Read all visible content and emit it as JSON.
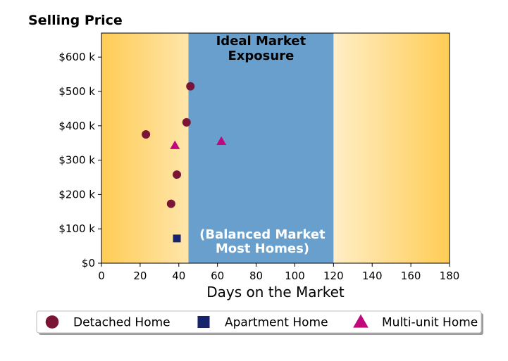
{
  "chart_data": {
    "type": "scatter",
    "title": "Selling Price",
    "xlabel": "Days on the Market",
    "ylabel": "",
    "xlim": [
      0,
      180
    ],
    "ylim": [
      0,
      670000
    ],
    "x_ticks": [
      0,
      20,
      40,
      60,
      80,
      100,
      120,
      140,
      160,
      180
    ],
    "x_tick_labels": [
      "0",
      "20",
      "40",
      "60",
      "80",
      "100",
      "120",
      "140",
      "160",
      "180"
    ],
    "y_ticks": [
      0,
      100000,
      200000,
      300000,
      400000,
      500000,
      600000
    ],
    "y_tick_labels": [
      "$0",
      "$100 k",
      "$200 k",
      "$300 k",
      "$400 k",
      "$500 k",
      "$600 k"
    ],
    "band": {
      "x_range": [
        45,
        120
      ],
      "color": "#689FCC",
      "label_top": [
        "Ideal Market",
        "Exposure"
      ],
      "label_bottom": [
        "(Balanced Market",
        "Most Homes)"
      ]
    },
    "background_gradient": {
      "edge_color": "#FFCC55",
      "center_color": "#FFFFFF"
    },
    "grid": false,
    "legend_position": "bottom",
    "series": [
      {
        "name": "Detached Home",
        "marker": "circle",
        "color": "#7B1535",
        "points": [
          {
            "x": 23,
            "y": 375000
          },
          {
            "x": 46,
            "y": 515000
          },
          {
            "x": 44,
            "y": 410000
          },
          {
            "x": 39,
            "y": 258000
          },
          {
            "x": 36,
            "y": 173000
          }
        ]
      },
      {
        "name": "Apartment Home",
        "marker": "square",
        "color": "#16236D",
        "points": [
          {
            "x": 39,
            "y": 72000
          }
        ]
      },
      {
        "name": "Multi-unit Home",
        "marker": "triangle",
        "color": "#C0087C",
        "points": [
          {
            "x": 38,
            "y": 343000
          },
          {
            "x": 62,
            "y": 355000
          }
        ]
      }
    ]
  }
}
